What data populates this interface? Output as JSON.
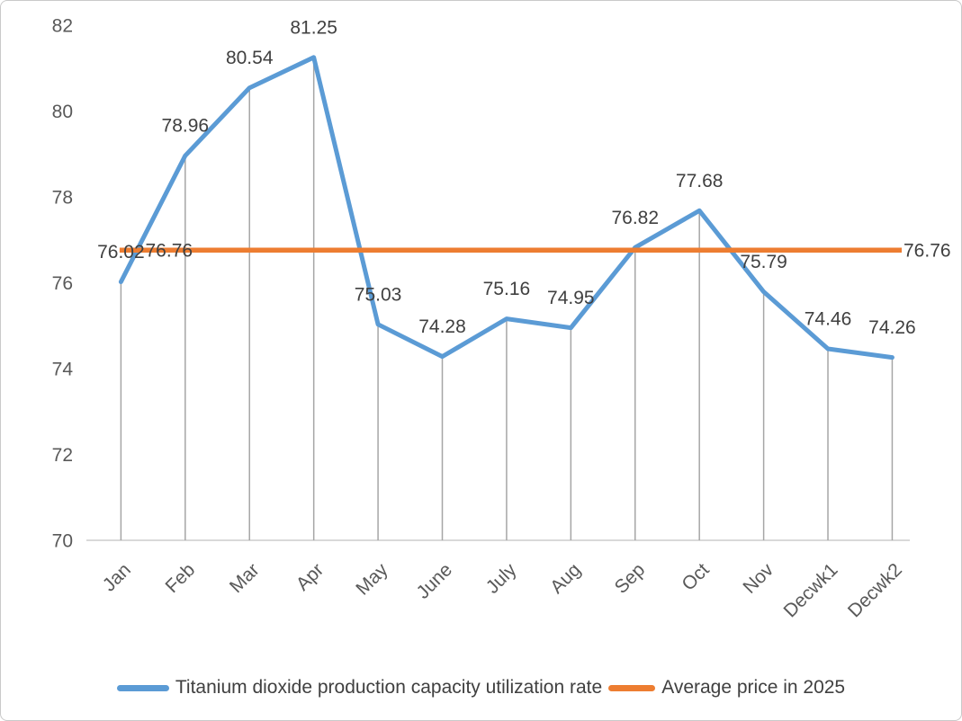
{
  "chart_data": {
    "type": "line",
    "categories": [
      "Jan",
      "Feb",
      "Mar",
      "Apr",
      "May",
      "June",
      "July",
      "Aug",
      "Sep",
      "Oct",
      "Nov",
      "Decwk1",
      "Decwk2"
    ],
    "series": [
      {
        "name": "Titanium dioxide production capacity utilization rate",
        "type": "line",
        "color": "#5B9BD5",
        "values": [
          76.02,
          78.96,
          80.54,
          81.25,
          75.03,
          74.28,
          75.16,
          74.95,
          76.82,
          77.68,
          75.79,
          74.46,
          74.26
        ]
      },
      {
        "name": "Average price in 2025",
        "type": "constant-line",
        "color": "#ED7D31",
        "value": 76.76,
        "end_labels": [
          "76.76",
          "76.76"
        ]
      }
    ],
    "title": "",
    "xlabel": "",
    "ylabel": "",
    "ylim": [
      70,
      82
    ],
    "yticks": [
      70,
      72,
      74,
      76,
      78,
      80,
      82
    ],
    "x_tick_rotation": -45,
    "grid": "vertical-drop-lines",
    "legend_position": "bottom",
    "data_labels": true,
    "data_label_decimals": 2
  },
  "colors": {
    "series_line": "#5B9BD5",
    "average_line": "#ED7D31",
    "data_label_text": "#404040",
    "axis_tick_text": "#595959",
    "drop_line": "#A6A6A6",
    "axis_line": "#D9D9D9",
    "window_border": "#C9C9C9",
    "background": "#FFFFFF"
  }
}
